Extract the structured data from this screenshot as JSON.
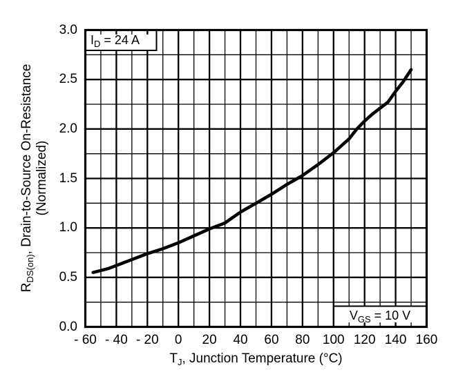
{
  "colors": {
    "background": "#ffffff",
    "ink": "#000000"
  },
  "chart_data": {
    "type": "line",
    "title": "",
    "xlabel": {
      "pre": "T",
      "sub": "J",
      "post": ", Junction Temperature (°C)"
    },
    "ylabel": {
      "pre": "R",
      "sub": "DS(on)",
      "post": ", Drain-to-Source On-Resistance",
      "line2": "(Normalized)"
    },
    "xlim": [
      -60,
      160
    ],
    "ylim": [
      0,
      3
    ],
    "x_major_step": 20,
    "x_minor_step": 10,
    "y_major_step": 0.5,
    "y_minor_step": 0.25,
    "grid": "major+minor",
    "legend": "none",
    "x_tick_labels": [
      "- 60",
      "- 40",
      "- 20",
      "0",
      "20",
      "40",
      "60",
      "80",
      "100",
      "120",
      "140",
      "160"
    ],
    "x_tick_values": [
      -60,
      -40,
      -20,
      0,
      20,
      40,
      60,
      80,
      100,
      120,
      140,
      160
    ],
    "y_tick_labels": [
      "3.0",
      "2.5",
      "2.0",
      "1.5",
      "1.0",
      "0.5",
      "0.0"
    ],
    "y_tick_values": [
      3,
      2.5,
      2,
      1.5,
      1,
      0.5,
      0
    ],
    "series": [
      {
        "points": [
          [
            -55,
            0.55
          ],
          [
            -45,
            0.59
          ],
          [
            -40,
            0.62
          ],
          [
            -30,
            0.68
          ],
          [
            -20,
            0.74
          ],
          [
            -10,
            0.79
          ],
          [
            0,
            0.85
          ],
          [
            10,
            0.92
          ],
          [
            20,
            0.99
          ],
          [
            30,
            1.05
          ],
          [
            40,
            1.16
          ],
          [
            50,
            1.25
          ],
          [
            60,
            1.34
          ],
          [
            70,
            1.44
          ],
          [
            80,
            1.53
          ],
          [
            90,
            1.64
          ],
          [
            100,
            1.76
          ],
          [
            105,
            1.83
          ],
          [
            110,
            1.9
          ],
          [
            115,
            2.0
          ],
          [
            120,
            2.08
          ],
          [
            125,
            2.15
          ],
          [
            130,
            2.21
          ],
          [
            135,
            2.27
          ],
          [
            140,
            2.38
          ],
          [
            145,
            2.48
          ],
          [
            150,
            2.6
          ]
        ]
      }
    ],
    "annotations": [
      {
        "pre": "I",
        "sub": "D",
        "post": " = 24 A",
        "position": "top-left"
      },
      {
        "pre": "V",
        "sub": "GS",
        "post": " = 10 V",
        "position": "bottom-right"
      }
    ]
  }
}
